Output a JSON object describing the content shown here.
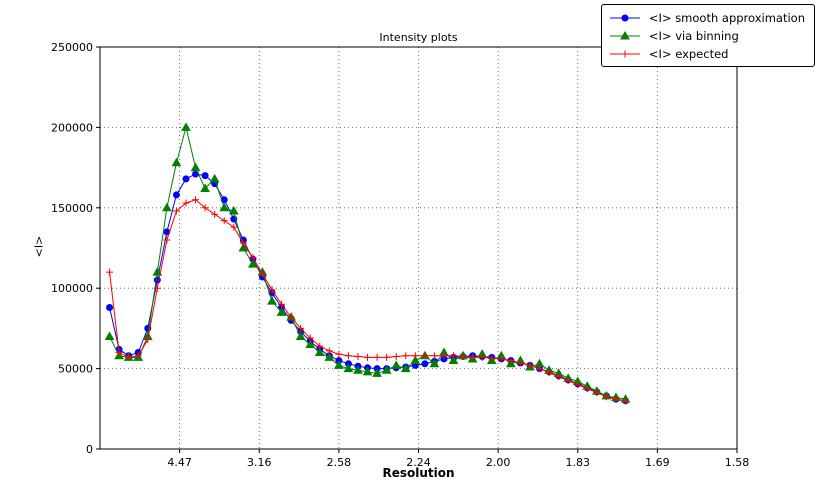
{
  "figure": {
    "background": "#ffffff",
    "plot_border_color": "#000000",
    "grid_color": "#555555"
  },
  "chart_data": {
    "type": "line",
    "title": "Intensity plots",
    "xlabel": "Resolution",
    "ylabel": "<I>",
    "xlim": [
      0,
      0.4
    ],
    "ylim": [
      0,
      250000
    ],
    "grid": true,
    "grid_style": "dotted",
    "legend_position": "top-right-outside",
    "x_axis_note": "linear in 1/d^2; tick labels show resolution in Angstrom",
    "x_ticks": {
      "positions": [
        0.05,
        0.1,
        0.15,
        0.2,
        0.25,
        0.3,
        0.35,
        0.4
      ],
      "labels": [
        "4.47",
        "3.16",
        "2.58",
        "2.24",
        "2.00",
        "1.83",
        "1.69",
        "1.58"
      ]
    },
    "y_ticks": {
      "positions": [
        0,
        50000,
        100000,
        150000,
        200000,
        250000
      ],
      "labels": [
        "0",
        "50000",
        "100000",
        "150000",
        "200000",
        "250000"
      ]
    },
    "x": [
      0.006,
      0.012,
      0.018,
      0.024,
      0.03,
      0.036,
      0.042,
      0.048,
      0.054,
      0.06,
      0.066,
      0.072,
      0.078,
      0.084,
      0.09,
      0.096,
      0.102,
      0.108,
      0.114,
      0.12,
      0.126,
      0.132,
      0.138,
      0.144,
      0.15,
      0.156,
      0.162,
      0.168,
      0.174,
      0.18,
      0.186,
      0.192,
      0.198,
      0.204,
      0.21,
      0.216,
      0.222,
      0.228,
      0.234,
      0.24,
      0.246,
      0.252,
      0.258,
      0.264,
      0.27,
      0.276,
      0.282,
      0.288,
      0.294,
      0.3,
      0.306,
      0.312,
      0.318,
      0.324,
      0.33
    ],
    "series": [
      {
        "name": "<I> smooth approximation",
        "color": "#0000ff",
        "marker": "circle",
        "values": [
          88000,
          62000,
          58000,
          60000,
          75000,
          105000,
          135000,
          158000,
          168000,
          171000,
          170000,
          165000,
          155000,
          143000,
          130000,
          118000,
          107000,
          97000,
          88000,
          80000,
          73000,
          67000,
          62000,
          58000,
          55000,
          53000,
          51500,
          50500,
          50000,
          50000,
          50500,
          51000,
          52000,
          53000,
          54500,
          56000,
          57000,
          57500,
          58000,
          57500,
          57000,
          56000,
          55000,
          53500,
          52000,
          50000,
          48000,
          45500,
          43000,
          40500,
          38000,
          35500,
          33000,
          31000,
          30000
        ]
      },
      {
        "name": "<I> via binning",
        "color": "#008000",
        "marker": "triangle",
        "values": [
          70000,
          58000,
          57000,
          57000,
          70000,
          110000,
          150000,
          178000,
          200000,
          175000,
          162000,
          168000,
          150000,
          148000,
          125000,
          115000,
          110000,
          92000,
          85000,
          82000,
          70000,
          65000,
          60000,
          57000,
          52000,
          50000,
          49000,
          48000,
          47000,
          49000,
          52000,
          50000,
          55000,
          58000,
          53000,
          60000,
          55000,
          58000,
          56000,
          59000,
          55000,
          58000,
          53000,
          55000,
          51000,
          53000,
          49000,
          47000,
          44000,
          42000,
          39000,
          36000,
          33000,
          32000,
          31000
        ]
      },
      {
        "name": "<I> expected",
        "color": "#ff0000",
        "marker": "plus",
        "values": [
          110000,
          60000,
          57000,
          58000,
          68000,
          100000,
          130000,
          148000,
          153000,
          155000,
          150000,
          146000,
          142000,
          138000,
          128000,
          119000,
          109000,
          99000,
          90000,
          82000,
          75000,
          69000,
          64000,
          61000,
          59000,
          58000,
          57500,
          57000,
          57000,
          57000,
          57500,
          58000,
          58000,
          58000,
          58000,
          58000,
          58000,
          57500,
          57000,
          57000,
          56500,
          56000,
          55000,
          53500,
          52000,
          50000,
          47500,
          45000,
          42500,
          40000,
          37500,
          35000,
          32500,
          31000,
          30000
        ]
      }
    ]
  }
}
